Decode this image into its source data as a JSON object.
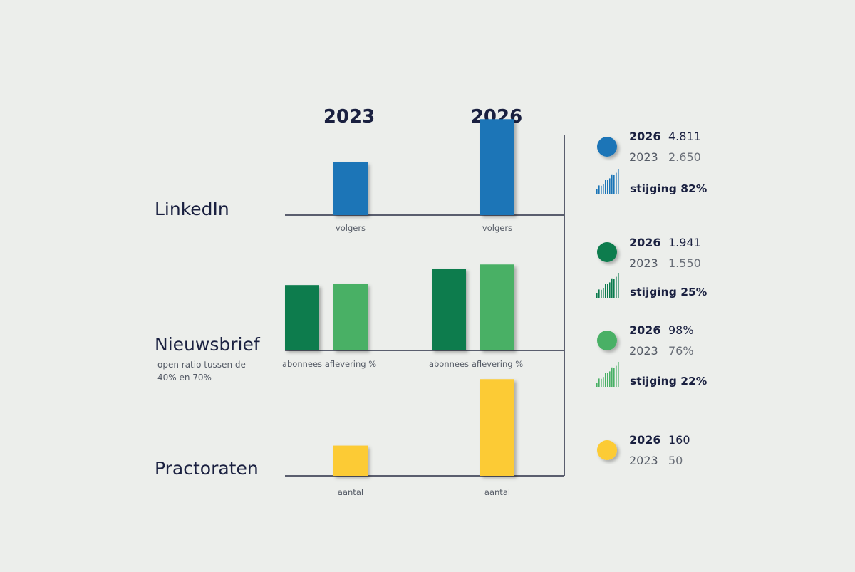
{
  "chart_data": {
    "type": "bar",
    "columns": [
      "2023",
      "2026"
    ],
    "rows": [
      {
        "title": "LinkedIn",
        "note": "",
        "bars": [
          {
            "label": "volgers",
            "color": "#1a75b7",
            "values": {
              "2023": 2650,
              "2026": 4811
            },
            "ylim": [
              0,
              5000
            ]
          }
        ]
      },
      {
        "title": "Nieuwsbrief",
        "note": "open ratio tussen de 40% en 70%",
        "bars": [
          {
            "label": "abonnees",
            "color": "#0b7b4d",
            "values": {
              "2023": 1550,
              "2026": 1941
            },
            "ylim": [
              0,
              2600
            ]
          },
          {
            "label": "aflevering %",
            "color": "#48b065",
            "values": {
              "2023": 76,
              "2026": 98
            },
            "ylim": [
              0,
              125
            ]
          }
        ]
      },
      {
        "title": "Practoraten",
        "note": "",
        "bars": [
          {
            "label": "aantal",
            "color": "#fccb35",
            "values": {
              "2023": 50,
              "2026": 160
            },
            "ylim": [
              0,
              165
            ]
          }
        ]
      }
    ]
  },
  "legend": [
    {
      "dot_color": "#1a75b7",
      "line1": {
        "year": "2026",
        "value": "4.811"
      },
      "line2": {
        "year": "2023",
        "value": "2.650"
      },
      "growth": "stijging 82%",
      "icon": "bar-growth-icon"
    },
    {
      "dot_color": "#0b7b4d",
      "line1": {
        "year": "2026",
        "value": "1.941"
      },
      "line2": {
        "year": "2023",
        "value": "1.550"
      },
      "growth": "stijging 25%",
      "icon": "bar-growth-icon"
    },
    {
      "dot_color": "#48b065",
      "line1": {
        "year": "2026",
        "value": "98%"
      },
      "line2": {
        "year": "2023",
        "value": "76%"
      },
      "growth": "stijging 22%",
      "icon": "bar-growth-icon"
    },
    {
      "dot_color": "#fccb35",
      "line1": {
        "year": "2026",
        "value": "160"
      },
      "line2": {
        "year": "2023",
        "value": "50"
      },
      "growth": "",
      "icon": ""
    }
  ]
}
